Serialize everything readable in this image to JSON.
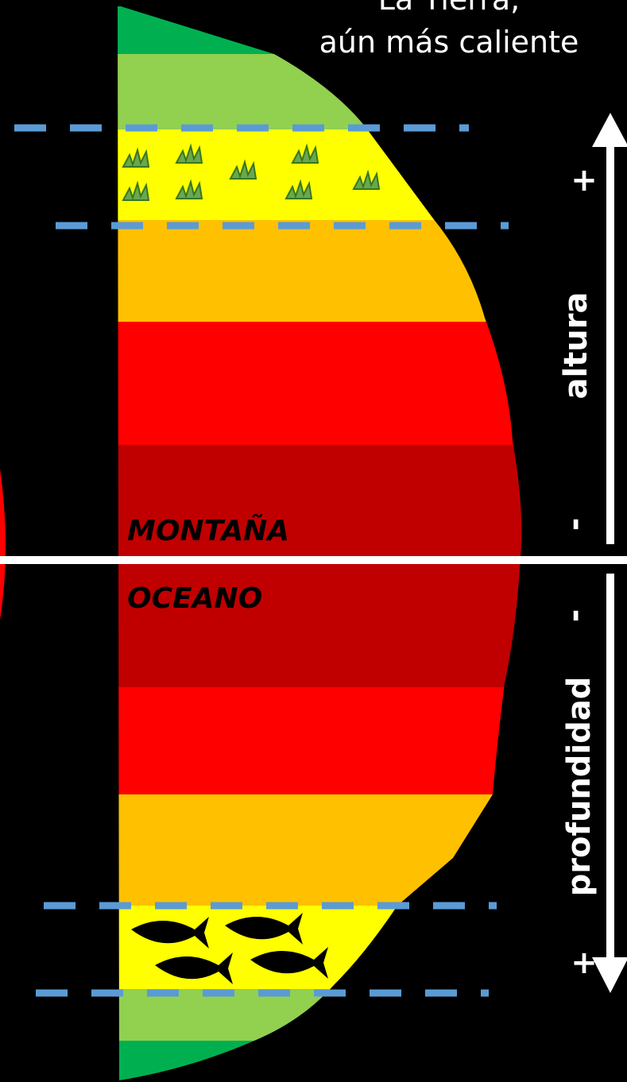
{
  "title": {
    "line1": "La Tierra,",
    "line2": "aún más caliente"
  },
  "zones": {
    "upper": "MONTAÑA",
    "lower": "OCEANO"
  },
  "axis": {
    "up": {
      "label": "altura",
      "high": "+",
      "low": "-"
    },
    "down": {
      "label": "profundidad",
      "low": "-",
      "high": "+"
    }
  }
}
